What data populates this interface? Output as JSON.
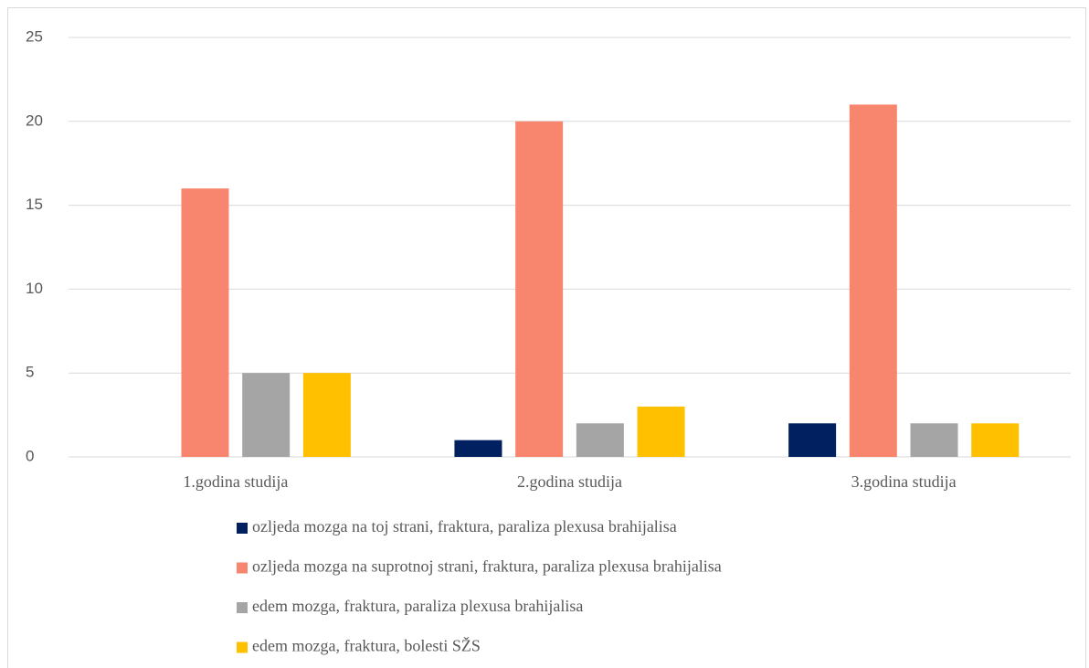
{
  "chart_data": {
    "type": "bar",
    "categories": [
      "1.godina studija",
      "2.godina studija",
      "3.godina studija"
    ],
    "series": [
      {
        "name": "ozljeda mozga na toj strani, fraktura, paraliza plexusa brahijalisa",
        "color": "#002060",
        "values": [
          0,
          1,
          2
        ]
      },
      {
        "name": "ozljeda mozga na suprotnoj strani, fraktura, paraliza plexusa brahijalisa",
        "color": "#f8866e",
        "values": [
          16,
          20,
          21
        ]
      },
      {
        "name": "edem mozga, fraktura, paraliza plexusa brahijalisa",
        "color": "#a5a5a5",
        "values": [
          5,
          2,
          2
        ]
      },
      {
        "name": "edem mozga, fraktura, bolesti SŽS",
        "color": "#ffc000",
        "values": [
          5,
          3,
          2
        ]
      }
    ],
    "ylim": [
      0,
      25
    ],
    "yticks": [
      0,
      5,
      10,
      15,
      20,
      25
    ],
    "grid": true,
    "legend": "bottom"
  }
}
